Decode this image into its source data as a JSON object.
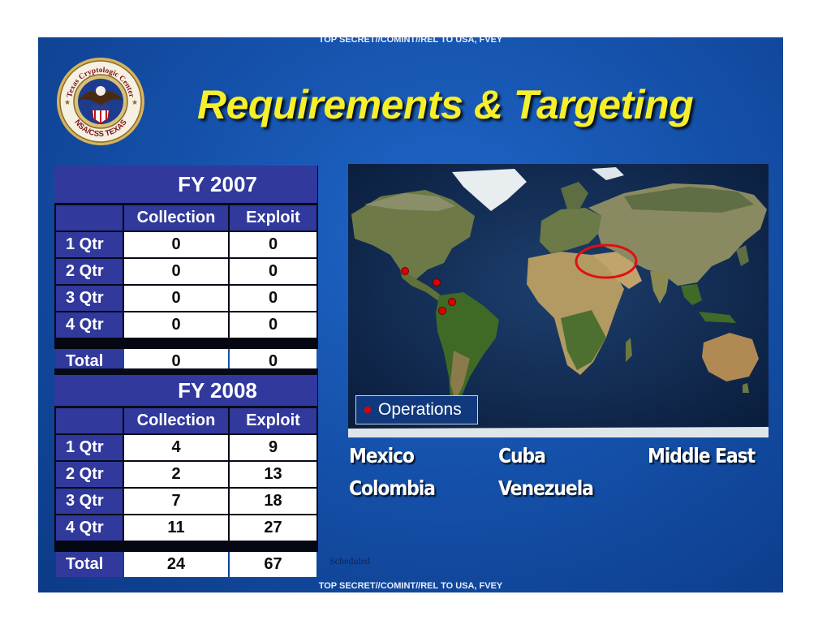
{
  "classification": {
    "top": "TOP SECRET//COMINT//REL TO USA, FVEY",
    "bottom": "TOP SECRET//COMINT//REL TO USA, FVEY"
  },
  "seal": {
    "icon": "texas-cryptologic-center-seal-icon",
    "top_text": "Texas Cryptologic Center",
    "bottom_text": "NSA/CSS TEXAS"
  },
  "title": "Requirements & Targeting",
  "tables": [
    {
      "year": "FY 2007",
      "columns": [
        "Collection",
        "Exploit"
      ],
      "rows": [
        {
          "label": "1 Qtr",
          "collection": "0",
          "exploit": "0"
        },
        {
          "label": "2 Qtr",
          "collection": "0",
          "exploit": "0"
        },
        {
          "label": "3 Qtr",
          "collection": "0",
          "exploit": "0"
        },
        {
          "label": "4 Qtr",
          "collection": "0",
          "exploit": "0"
        }
      ],
      "total": {
        "label": "Total",
        "collection": "0",
        "exploit": "0"
      }
    },
    {
      "year": "FY 2008",
      "columns": [
        "Collection",
        "Exploit"
      ],
      "rows": [
        {
          "label": "1 Qtr",
          "collection": "4",
          "exploit": "9"
        },
        {
          "label": "2 Qtr",
          "collection": "2",
          "exploit": "13"
        },
        {
          "label": "3 Qtr",
          "collection": "7",
          "exploit": "18"
        },
        {
          "label": "4 Qtr",
          "collection": "11",
          "exploit": "27"
        }
      ],
      "total": {
        "label": "Total",
        "collection": "24",
        "exploit": "67"
      }
    }
  ],
  "scheduled_note": "Scheduled",
  "map": {
    "icon": "world-map-icon",
    "legend": {
      "marker_color": "#e00000",
      "label": "Operations"
    },
    "highlight_color": "#e01010"
  },
  "regions": [
    "Mexico",
    "Cuba",
    "Middle East",
    "Colombia",
    "Venezuela"
  ],
  "colors": {
    "title": "#f7ef2a",
    "table_header": "#31399c",
    "slide_background": "#1552ac"
  }
}
